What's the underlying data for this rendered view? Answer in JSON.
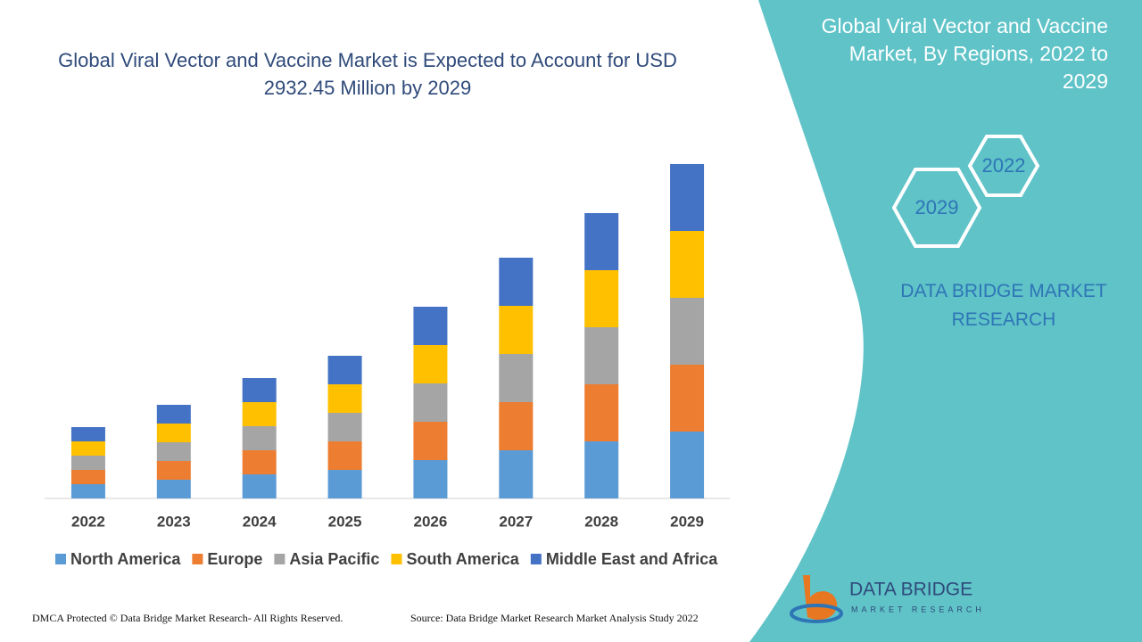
{
  "chart_data": {
    "type": "stacked-bar",
    "title": "Global Viral Vector and Vaccine Market is Expected to Account for USD 2932.45 Million by 2029",
    "categories": [
      "2022",
      "2023",
      "2024",
      "2025",
      "2026",
      "2027",
      "2028",
      "2029"
    ],
    "series": [
      {
        "name": "North America",
        "color": "#5b9bd5",
        "values": [
          16,
          21,
          27,
          32,
          43,
          54,
          64,
          75
        ]
      },
      {
        "name": "Europe",
        "color": "#ed7d31",
        "values": [
          16,
          21,
          27,
          32,
          43,
          54,
          64,
          75
        ]
      },
      {
        "name": "Asia Pacific",
        "color": "#a5a5a5",
        "values": [
          16,
          21,
          27,
          32,
          43,
          54,
          64,
          75
        ]
      },
      {
        "name": "South America",
        "color": "#ffc000",
        "values": [
          16,
          21,
          27,
          32,
          43,
          54,
          64,
          75
        ]
      },
      {
        "name": "Middle East and Africa",
        "color": "#4472c4",
        "values": [
          16,
          21,
          27,
          32,
          43,
          54,
          64,
          75
        ]
      }
    ],
    "ylim": [
      0,
      400
    ],
    "legend": "bottom"
  },
  "panel": {
    "heading": "Global Viral Vector and Vaccine Market, By Regions, 2022 to 2029",
    "hex_labels": [
      "2022",
      "2029"
    ],
    "brand": "DATA BRIDGE MARKET RESEARCH"
  },
  "logo": {
    "name": "DATA BRIDGE",
    "tagline": "MARKET RESEARCH"
  },
  "footer": {
    "left": "DMCA Protected © Data Bridge Market Research- All Rights Reserved.",
    "right": "Source: Data Bridge Market Research Market Analysis Study 2022"
  }
}
